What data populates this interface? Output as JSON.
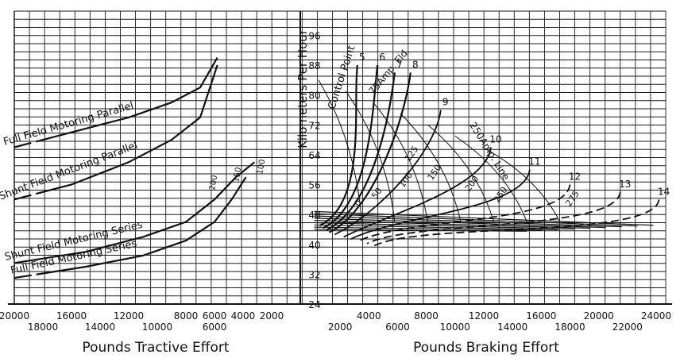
{
  "chart_data": {
    "type": "line",
    "left_panel": {
      "xlabel": "Pounds Tractive Effort",
      "xlim": [
        20000,
        0
      ],
      "x_ticks_upper": [
        "20000",
        "16000",
        "12000",
        "8000",
        "6000",
        "4000",
        "2000"
      ],
      "x_ticks_lower": [
        "18000",
        "14000",
        "10000",
        "6000"
      ],
      "series": [
        {
          "name": "Shunt Field Motoring Parallel",
          "dashed_start": true,
          "points": [
            [
              20000,
              52
            ],
            [
              16000,
              56
            ],
            [
              12000,
              62
            ],
            [
              9000,
              68
            ],
            [
              7000,
              74
            ],
            [
              5800,
              88
            ]
          ]
        },
        {
          "name": "Full Field Motoring Parallel",
          "dashed_start": true,
          "points": [
            [
              20000,
              66
            ],
            [
              16000,
              70
            ],
            [
              12000,
              74
            ],
            [
              9000,
              78
            ],
            [
              7000,
              82
            ],
            [
              5800,
              90
            ]
          ]
        },
        {
          "name": "Shunt Field Motoring Series",
          "dashed_start": false,
          "points": [
            [
              20000,
              35
            ],
            [
              15000,
              38
            ],
            [
              11000,
              42
            ],
            [
              8000,
              46
            ],
            [
              6000,
              52
            ],
            [
              4500,
              58
            ],
            [
              3200,
              62
            ]
          ]
        },
        {
          "name": "Full Field Motoring Series",
          "dashed_start": true,
          "points": [
            [
              20000,
              31
            ],
            [
              15000,
              34
            ],
            [
              11000,
              37
            ],
            [
              8000,
              41
            ],
            [
              6000,
              46
            ],
            [
              4800,
              52
            ],
            [
              3800,
              58
            ]
          ]
        }
      ],
      "current_labels": [
        "200",
        "150",
        "100"
      ]
    },
    "right_panel": {
      "ylabel": "Kilometers Per Hour",
      "xlabel": "Pounds Braking Effort",
      "ylim": [
        24,
        98
      ],
      "y_ticks": [
        "24",
        "32",
        "40",
        "48",
        "56",
        "64",
        "72",
        "80",
        "88",
        "96"
      ],
      "x_ticks_upper": [
        "4000",
        "8000",
        "12000",
        "16000",
        "20000",
        "24000"
      ],
      "x_ticks_lower": [
        "2000",
        "6000",
        "10000",
        "14000",
        "18000",
        "22000"
      ],
      "control_point_label": "Control Point",
      "control_points": [
        "5",
        "6",
        "7",
        "8",
        "9",
        "10",
        "11",
        "12",
        "13",
        "14"
      ],
      "field_label": "75Amp. Fld.",
      "line_label": "250Amp. Line",
      "current_labels": [
        "0",
        "50",
        "100",
        "125",
        "150",
        "200",
        "250",
        "275"
      ]
    }
  }
}
